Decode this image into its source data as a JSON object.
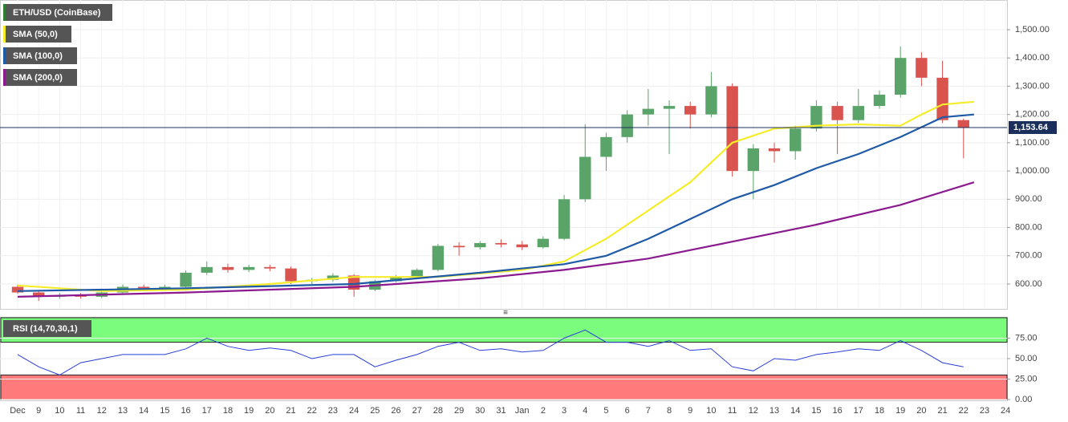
{
  "chart_data": [
    {
      "type": "candlestick",
      "title": "ETH/USD (CoinBase)",
      "x": [
        0,
        1,
        2,
        3,
        4,
        5,
        6,
        7,
        8,
        9,
        10,
        11,
        12,
        13,
        14,
        15,
        16,
        17,
        18,
        19,
        20,
        21,
        22,
        23,
        24,
        25,
        26,
        27,
        28,
        29,
        30,
        31,
        32,
        33,
        34,
        35,
        36,
        37,
        38,
        39,
        40,
        41,
        42,
        43,
        44,
        45
      ],
      "open": [
        590,
        570,
        555,
        560,
        555,
        570,
        590,
        585,
        590,
        640,
        660,
        650,
        660,
        655,
        610,
        615,
        630,
        580,
        610,
        625,
        650,
        735,
        730,
        745,
        740,
        730,
        760,
        900,
        1050,
        1120,
        1200,
        1220,
        1230,
        1200,
        1300,
        1000,
        1080,
        1070,
        1150,
        1230,
        1180,
        1230,
        1270,
        1400,
        1330,
        1180
      ],
      "high": [
        598,
        575,
        568,
        568,
        575,
        598,
        598,
        598,
        648,
        680,
        672,
        668,
        668,
        662,
        622,
        638,
        635,
        615,
        632,
        655,
        742,
        748,
        752,
        758,
        752,
        768,
        915,
        1165,
        1135,
        1215,
        1290,
        1250,
        1245,
        1350,
        1310,
        1095,
        1100,
        1160,
        1250,
        1245,
        1290,
        1285,
        1440,
        1420,
        1390,
        1185
      ],
      "low": [
        565,
        540,
        548,
        548,
        550,
        565,
        578,
        580,
        585,
        632,
        640,
        642,
        645,
        600,
        600,
        608,
        555,
        575,
        605,
        620,
        645,
        700,
        722,
        730,
        720,
        725,
        755,
        890,
        1000,
        1100,
        1160,
        1060,
        1150,
        1190,
        980,
        900,
        1030,
        1040,
        1140,
        1060,
        1170,
        1220,
        1260,
        1300,
        1170,
        1045
      ],
      "close": [
        570,
        555,
        560,
        555,
        570,
        590,
        585,
        590,
        640,
        660,
        650,
        660,
        655,
        610,
        615,
        630,
        580,
        610,
        625,
        650,
        735,
        730,
        745,
        740,
        730,
        760,
        900,
        1050,
        1120,
        1200,
        1220,
        1230,
        1200,
        1300,
        1000,
        1080,
        1070,
        1150,
        1230,
        1180,
        1230,
        1270,
        1400,
        1330,
        1180,
        1153.64
      ],
      "up_color": "#5aa469",
      "down_color": "#d9534f",
      "series": [
        {
          "name": "SMA (50,0)",
          "color": "#f5ec2a",
          "x": [
            0,
            4,
            8,
            12,
            16,
            20,
            24,
            26,
            28,
            30,
            32,
            34,
            36,
            38,
            40,
            42,
            43,
            44,
            45.5
          ],
          "values": [
            595,
            575,
            580,
            600,
            625,
            625,
            650,
            680,
            760,
            860,
            960,
            1100,
            1150,
            1160,
            1165,
            1160,
            1200,
            1235,
            1245
          ]
        },
        {
          "name": "SMA (100,0)",
          "color": "#1f5aa6",
          "x": [
            0,
            8,
            16,
            22,
            26,
            28,
            30,
            32,
            34,
            36,
            38,
            40,
            42,
            44,
            45.5
          ],
          "values": [
            575,
            585,
            600,
            640,
            670,
            700,
            760,
            830,
            900,
            950,
            1010,
            1060,
            1120,
            1190,
            1200
          ]
        },
        {
          "name": "SMA (200,0)",
          "color": "#8b1a8f",
          "x": [
            0,
            8,
            16,
            22,
            26,
            30,
            34,
            38,
            42,
            45.5
          ],
          "values": [
            555,
            570,
            590,
            620,
            650,
            690,
            750,
            810,
            880,
            960
          ]
        }
      ],
      "xlim": [
        -0.84,
        47.07
      ],
      "ylim": [
        512,
        1605
      ],
      "yticks": [
        {
          "value": 600,
          "label": "600.00"
        },
        {
          "value": 700,
          "label": "700.00"
        },
        {
          "value": 800,
          "label": "800.00"
        },
        {
          "value": 900,
          "label": "900.00"
        },
        {
          "value": 1000,
          "label": "1,000.00"
        },
        {
          "value": 1100,
          "label": "1,100.00"
        },
        {
          "value": 1200,
          "label": "1,200.00"
        },
        {
          "value": 1300,
          "label": "1,300.00"
        },
        {
          "value": 1400,
          "label": "1,400.00"
        },
        {
          "value": 1500,
          "label": "1,500.00"
        }
      ],
      "xticks": [
        {
          "value": 0,
          "label": "Dec"
        },
        {
          "value": 1,
          "label": "9"
        },
        {
          "value": 2,
          "label": "10"
        },
        {
          "value": 3,
          "label": "11"
        },
        {
          "value": 4,
          "label": "12"
        },
        {
          "value": 5,
          "label": "13"
        },
        {
          "value": 6,
          "label": "14"
        },
        {
          "value": 7,
          "label": "15"
        },
        {
          "value": 8,
          "label": "16"
        },
        {
          "value": 9,
          "label": "17"
        },
        {
          "value": 10,
          "label": "18"
        },
        {
          "value": 11,
          "label": "19"
        },
        {
          "value": 12,
          "label": "20"
        },
        {
          "value": 13,
          "label": "21"
        },
        {
          "value": 14,
          "label": "22"
        },
        {
          "value": 15,
          "label": "23"
        },
        {
          "value": 16,
          "label": "24"
        },
        {
          "value": 17,
          "label": "25"
        },
        {
          "value": 18,
          "label": "26"
        },
        {
          "value": 19,
          "label": "27"
        },
        {
          "value": 20,
          "label": "28"
        },
        {
          "value": 21,
          "label": "29"
        },
        {
          "value": 22,
          "label": "30"
        },
        {
          "value": 23,
          "label": "31"
        },
        {
          "value": 24,
          "label": "Jan"
        },
        {
          "value": 25,
          "label": "2"
        },
        {
          "value": 26,
          "label": "3"
        },
        {
          "value": 27,
          "label": "4"
        },
        {
          "value": 28,
          "label": "5"
        },
        {
          "value": 29,
          "label": "6"
        },
        {
          "value": 30,
          "label": "7"
        },
        {
          "value": 31,
          "label": "8"
        },
        {
          "value": 32,
          "label": "9"
        },
        {
          "value": 33,
          "label": "10"
        },
        {
          "value": 34,
          "label": "11"
        },
        {
          "value": 35,
          "label": "12"
        },
        {
          "value": 36,
          "label": "13"
        },
        {
          "value": 37,
          "label": "14"
        },
        {
          "value": 38,
          "label": "15"
        },
        {
          "value": 39,
          "label": "16"
        },
        {
          "value": 40,
          "label": "17"
        },
        {
          "value": 41,
          "label": "18"
        },
        {
          "value": 42,
          "label": "19"
        },
        {
          "value": 43,
          "label": "20"
        },
        {
          "value": 44,
          "label": "21"
        },
        {
          "value": 45,
          "label": "22"
        },
        {
          "value": 46,
          "label": "23"
        },
        {
          "value": 47,
          "label": "24"
        }
      ],
      "last_price": {
        "value": 1153.64,
        "label": "1,153.64"
      },
      "grid": true
    },
    {
      "type": "line",
      "title": "RSI (14,70,30,1)",
      "color": "#2b3fd6",
      "x": [
        0,
        1,
        2,
        3,
        4,
        5,
        6,
        7,
        8,
        9,
        10,
        11,
        12,
        13,
        14,
        15,
        16,
        17,
        18,
        19,
        20,
        21,
        22,
        23,
        24,
        25,
        26,
        27,
        28,
        29,
        30,
        31,
        32,
        33,
        34,
        35,
        36,
        37,
        38,
        39,
        40,
        41,
        42,
        43,
        44,
        45
      ],
      "values": [
        55,
        40,
        30,
        45,
        50,
        55,
        55,
        55,
        62,
        75,
        65,
        60,
        63,
        60,
        50,
        55,
        55,
        40,
        48,
        55,
        65,
        70,
        60,
        62,
        58,
        60,
        75,
        85,
        70,
        70,
        65,
        72,
        60,
        62,
        40,
        35,
        50,
        48,
        55,
        58,
        62,
        60,
        72,
        60,
        45,
        40
      ],
      "upper_band": [
        70,
        100
      ],
      "lower_band": [
        0,
        30
      ],
      "band_colors": [
        "#7cfc7c",
        "#ff7b7b"
      ],
      "xlim": [
        -0.84,
        47.07
      ],
      "ylim": [
        0,
        100
      ],
      "yticks": [
        {
          "value": 0,
          "label": "0.00"
        },
        {
          "value": 25,
          "label": "25.00"
        },
        {
          "value": 50,
          "label": "50.00"
        },
        {
          "value": 75,
          "label": "75.00"
        }
      ],
      "grid": true
    }
  ]
}
